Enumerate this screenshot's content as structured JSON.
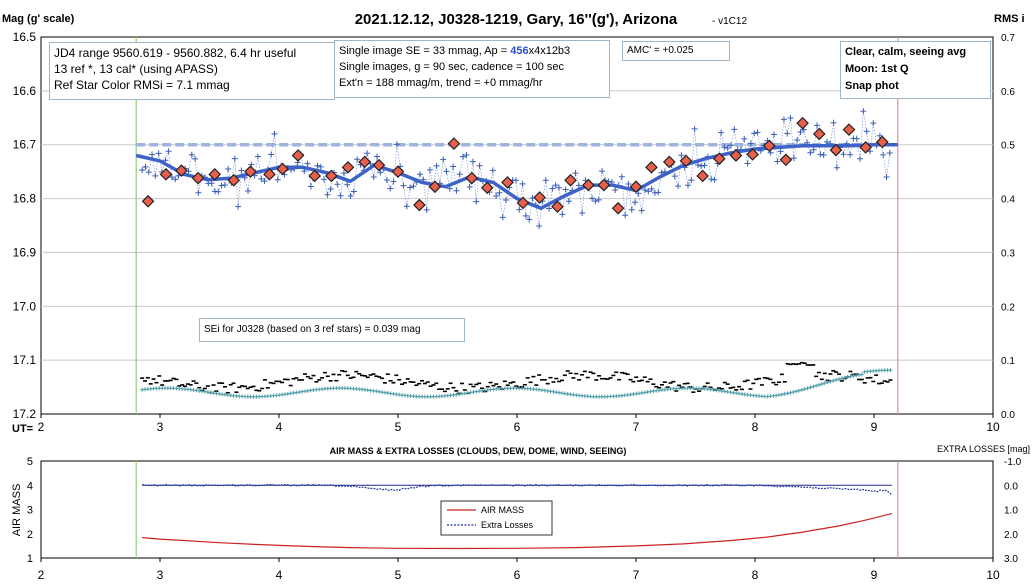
{
  "title_main": "2021.12.12, J0328-1219, Gary, 16''(g'), Arizona",
  "title_version": "- v1C12",
  "top_chart": {
    "left_axis_label": "Mag (g' scale)",
    "right_axis_label": "RMS i",
    "x_axis_label": "UT=",
    "box1": {
      "line1": "JD4 range 9560.619 - 9560.882, 6.4 hr useful",
      "line2": "13 ref *, 13 cal* (using APASS)",
      "line3": "Ref Star Color RMSi = 7.1 mmag"
    },
    "box2": {
      "line1_prefix": "Single image SE = 33 mmag, Ap = ",
      "line1_highlight": "456",
      "line1_suffix": "x4x12b3",
      "line2": "Single images, g = 90 sec, cadence = 100 sec",
      "line3": "Ext'n = 188 mmag/m, trend = +0 mmag/hr"
    },
    "amc_label": "AMC' = +0.025",
    "box3": {
      "line1": "Clear, calm, seeing avg",
      "line2": "Moon: 1st Q",
      "line3": "Snap phot"
    },
    "sei_label": "SEi for J0328 (based on 3 ref stars) = 0.039 mag"
  },
  "bottom_chart": {
    "title": "AIR MASS & EXTRA LOSSES (CLOUDS, DEW, DOME, WIND, SEEING)",
    "right_axis_label": "EXTRA LOSSES [mag]",
    "left_axis_label": "AIR MASS",
    "legend_airmass": "AIR MASS",
    "legend_losses": "Extra Losses"
  },
  "colors": {
    "individual_points": "#3a5fb8",
    "binned_fill": "#e8604c",
    "smooth_fit": "#3d62c8",
    "reference_level": "#9fb2e0",
    "rms_black": "#000000",
    "rms_teal": "#4e9da8",
    "airmass": "#cc2222",
    "extra_losses": "#1f2f9c",
    "start_marker": "#8fd07a",
    "end_marker": "#f08a8a"
  },
  "chart_data": [
    {
      "type": "scatter",
      "x_ticks": [
        2,
        3,
        4,
        5,
        6,
        7,
        8,
        9,
        10
      ],
      "y_ticks": [
        "16.5",
        "16.6",
        "16.7",
        "16.8",
        "16.9",
        "17.0",
        "17.1",
        "17.2"
      ],
      "y2_ticks": [
        "0.7",
        "0.6",
        "0.5",
        "0.4",
        "0.3",
        "0.2",
        "0.1",
        "0.0"
      ],
      "xlim": [
        2,
        10
      ],
      "ylim": [
        16.5,
        17.2
      ],
      "y_inverted": true,
      "y2lim": [
        0,
        0.7
      ],
      "ut_start": 2.8,
      "ut_end": 9.2,
      "reference_level_mag": 16.7,
      "binned_means": [
        [
          2.9,
          16.805
        ],
        [
          3.05,
          16.755
        ],
        [
          3.18,
          16.748
        ],
        [
          3.32,
          16.762
        ],
        [
          3.46,
          16.755
        ],
        [
          3.62,
          16.766
        ],
        [
          3.76,
          16.75
        ],
        [
          3.92,
          16.755
        ],
        [
          4.03,
          16.745
        ],
        [
          4.16,
          16.72
        ],
        [
          4.3,
          16.758
        ],
        [
          4.44,
          16.758
        ],
        [
          4.58,
          16.742
        ],
        [
          4.72,
          16.732
        ],
        [
          4.84,
          16.738
        ],
        [
          5.0,
          16.75
        ],
        [
          5.18,
          16.812
        ],
        [
          5.31,
          16.778
        ],
        [
          5.47,
          16.698
        ],
        [
          5.62,
          16.762
        ],
        [
          5.75,
          16.78
        ],
        [
          5.92,
          16.77
        ],
        [
          6.05,
          16.808
        ],
        [
          6.19,
          16.798
        ],
        [
          6.34,
          16.815
        ],
        [
          6.45,
          16.766
        ],
        [
          6.6,
          16.775
        ],
        [
          6.73,
          16.775
        ],
        [
          6.85,
          16.818
        ],
        [
          7.0,
          16.778
        ],
        [
          7.13,
          16.742
        ],
        [
          7.28,
          16.732
        ],
        [
          7.42,
          16.73
        ],
        [
          7.56,
          16.758
        ],
        [
          7.7,
          16.726
        ],
        [
          7.84,
          16.72
        ],
        [
          7.98,
          16.718
        ],
        [
          8.12,
          16.702
        ],
        [
          8.26,
          16.728
        ],
        [
          8.4,
          16.66
        ],
        [
          8.54,
          16.68
        ],
        [
          8.68,
          16.71
        ],
        [
          8.79,
          16.672
        ],
        [
          8.93,
          16.705
        ],
        [
          9.07,
          16.695
        ]
      ],
      "smooth_fit": [
        [
          2.8,
          16.72
        ],
        [
          3.0,
          16.73
        ],
        [
          3.2,
          16.755
        ],
        [
          3.4,
          16.765
        ],
        [
          3.6,
          16.762
        ],
        [
          3.8,
          16.752
        ],
        [
          4.0,
          16.742
        ],
        [
          4.2,
          16.742
        ],
        [
          4.4,
          16.752
        ],
        [
          4.6,
          16.768
        ],
        [
          4.8,
          16.738
        ],
        [
          5.0,
          16.752
        ],
        [
          5.2,
          16.77
        ],
        [
          5.4,
          16.778
        ],
        [
          5.6,
          16.76
        ],
        [
          5.8,
          16.77
        ],
        [
          6.0,
          16.8
        ],
        [
          6.2,
          16.818
        ],
        [
          6.4,
          16.795
        ],
        [
          6.6,
          16.775
        ],
        [
          6.8,
          16.775
        ],
        [
          7.0,
          16.785
        ],
        [
          7.2,
          16.76
        ],
        [
          7.4,
          16.738
        ],
        [
          7.6,
          16.725
        ],
        [
          7.8,
          16.715
        ],
        [
          8.0,
          16.708
        ],
        [
          8.2,
          16.705
        ],
        [
          8.4,
          16.702
        ],
        [
          8.6,
          16.702
        ],
        [
          8.8,
          16.702
        ],
        [
          9.0,
          16.7
        ],
        [
          9.2,
          16.7
        ]
      ]
    },
    {
      "type": "line",
      "x_ticks": [
        2,
        3,
        4,
        5,
        6,
        7,
        8,
        9,
        10
      ],
      "y_ticks": [
        1,
        2,
        3,
        4,
        5
      ],
      "y2_ticks": [
        "-1.0",
        "0.0",
        "1.0",
        "2.0",
        "3.0"
      ],
      "xlim": [
        2,
        10
      ],
      "ylim": [
        1,
        5
      ],
      "y2lim": [
        -1.0,
        3.0
      ],
      "y2_inverted": true,
      "series": [
        {
          "name": "AIR MASS",
          "x": [
            2.85,
            3.0,
            3.2,
            3.5,
            3.8,
            4.0,
            4.3,
            4.6,
            5.0,
            5.5,
            6.0,
            6.5,
            7.0,
            7.4,
            7.8,
            8.1,
            8.4,
            8.7,
            8.9,
            9.15
          ],
          "y": [
            1.84,
            1.78,
            1.72,
            1.63,
            1.56,
            1.52,
            1.47,
            1.43,
            1.4,
            1.39,
            1.4,
            1.43,
            1.5,
            1.58,
            1.72,
            1.86,
            2.07,
            2.32,
            2.53,
            2.83
          ]
        },
        {
          "name": "Extra Losses",
          "x": [
            2.85,
            3.2,
            3.6,
            4.0,
            4.4,
            4.6,
            4.8,
            5.0,
            5.1,
            5.3,
            5.6,
            6.0,
            6.5,
            7.0,
            7.5,
            8.0,
            8.3,
            8.5,
            8.7,
            8.9,
            9.0,
            9.1,
            9.15
          ],
          "y": [
            0.0,
            0.0,
            0.0,
            0.0,
            0.0,
            0.05,
            0.15,
            0.2,
            0.1,
            0.0,
            0.0,
            0.0,
            0.0,
            0.0,
            0.0,
            0.0,
            0.05,
            0.1,
            0.15,
            0.18,
            0.25,
            0.2,
            0.4
          ]
        }
      ]
    }
  ]
}
